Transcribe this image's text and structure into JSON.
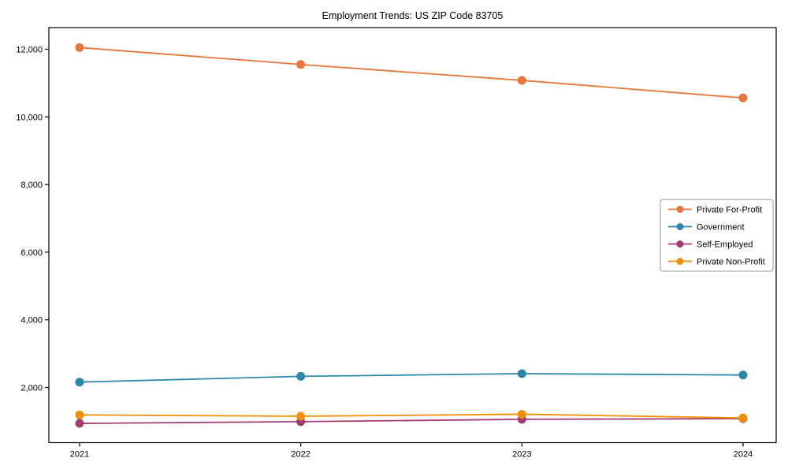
{
  "chart_data": {
    "type": "line",
    "title": "Employment Trends: US ZIP Code 83705",
    "categories": [
      "2021",
      "2022",
      "2023",
      "2024"
    ],
    "series": [
      {
        "name": "Private For-Profit",
        "color": "#E8763C",
        "values": [
          12050,
          11550,
          11080,
          10560
        ]
      },
      {
        "name": "Government",
        "color": "#2E86AB",
        "values": [
          2160,
          2330,
          2410,
          2370
        ]
      },
      {
        "name": "Self-Employed",
        "color": "#A23B72",
        "values": [
          940,
          990,
          1060,
          1080
        ]
      },
      {
        "name": "Private Non-Profit",
        "color": "#F18F01",
        "values": [
          1190,
          1150,
          1210,
          1100
        ]
      }
    ],
    "xlabel": "",
    "ylabel": "",
    "ylim": [
      370,
      12640
    ],
    "y_ticks": [
      2000,
      4000,
      6000,
      8000,
      10000,
      12000
    ],
    "y_tick_labels": [
      "2,000",
      "4,000",
      "6,000",
      "8,000",
      "10,000",
      "12,000"
    ],
    "grid": false,
    "legend_position": "center-right",
    "axis_color": "#000000",
    "legend_border_color": "#999999",
    "background": "#ffffff"
  }
}
